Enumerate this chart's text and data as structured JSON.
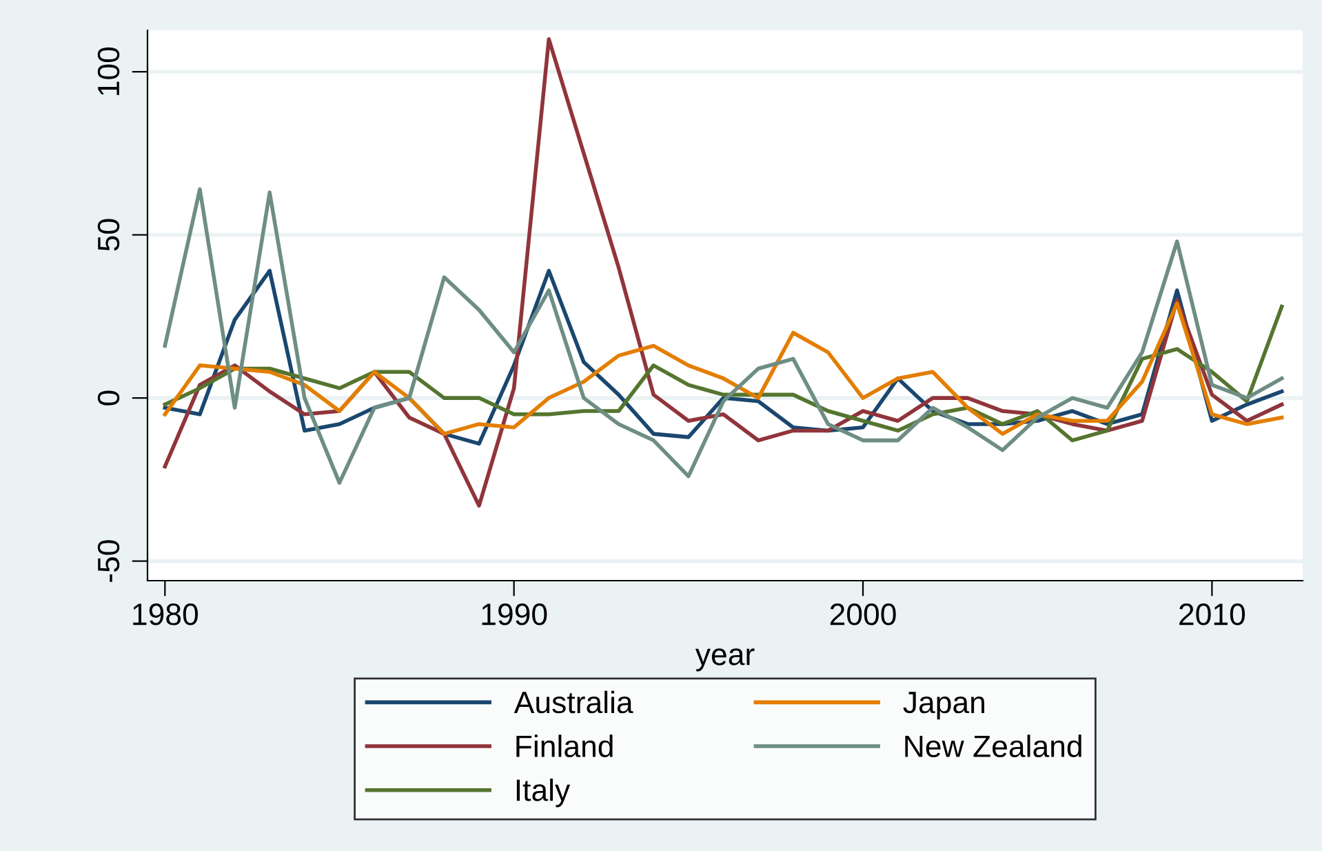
{
  "chart_data": {
    "type": "line",
    "xlabel": "year",
    "x": [
      1980,
      1981,
      1982,
      1983,
      1984,
      1985,
      1986,
      1987,
      1988,
      1989,
      1990,
      1991,
      1992,
      1993,
      1994,
      1995,
      1996,
      1997,
      1998,
      1999,
      2000,
      2001,
      2002,
      2003,
      2004,
      2005,
      2006,
      2007,
      2008,
      2009,
      2010,
      2011,
      2012
    ],
    "series": [
      {
        "name": "Australia",
        "color": "#1a476f",
        "values": [
          -3,
          -5,
          24,
          39,
          -10,
          -8,
          -3,
          0,
          -11,
          -14,
          10,
          39,
          11,
          1,
          -11,
          -12,
          0,
          -1,
          -9,
          -10,
          -9,
          6,
          -4,
          -8,
          -8,
          -7,
          -4,
          -8,
          -5,
          33,
          -7,
          -2,
          2
        ]
      },
      {
        "name": "Finland",
        "color": "#90353b",
        "values": [
          -21,
          4,
          10,
          2,
          -5,
          -4,
          8,
          -6,
          -11,
          -33,
          3,
          110,
          75,
          40,
          1,
          -7,
          -5,
          -13,
          -10,
          -10,
          -4,
          -7,
          0,
          0,
          -4,
          -5,
          -8,
          -10,
          -7,
          30,
          1,
          -7,
          -2
        ]
      },
      {
        "name": "Italy",
        "color": "#55752f",
        "values": [
          -2,
          3,
          9,
          9,
          6,
          3,
          8,
          8,
          0,
          0,
          -5,
          -5,
          -4,
          -4,
          10,
          4,
          1,
          1,
          1,
          -4,
          -7,
          -10,
          -5,
          -3,
          -8,
          -4,
          -13,
          -10,
          12,
          15,
          8,
          -1,
          28
        ]
      },
      {
        "name": "Japan",
        "color": "#e37e00",
        "values": [
          -5,
          10,
          9,
          8,
          4,
          -4,
          8,
          0,
          -11,
          -8,
          -9,
          0,
          5,
          13,
          16,
          10,
          6,
          0,
          20,
          14,
          0,
          6,
          8,
          -3,
          -11,
          -5,
          -7,
          -7,
          5,
          29,
          -5,
          -8,
          -6
        ]
      },
      {
        "name": "New Zealand",
        "color": "#6e8e84",
        "values": [
          16,
          64,
          -3,
          63,
          0,
          -26,
          -3,
          0,
          37,
          27,
          14,
          33,
          0,
          -8,
          -13,
          -24,
          -1,
          9,
          12,
          -8,
          -13,
          -13,
          -3,
          -9,
          -16,
          -6,
          0,
          -3,
          14,
          48,
          4,
          0,
          6
        ]
      }
    ],
    "xlim": [
      1979.5,
      2012.6
    ],
    "ylim": [
      -56,
      112.7
    ],
    "xticks": [
      1980,
      1990,
      2000,
      2010
    ],
    "yticks": [
      -50,
      0,
      50,
      100
    ],
    "grid": "y",
    "legend": "bottom"
  }
}
